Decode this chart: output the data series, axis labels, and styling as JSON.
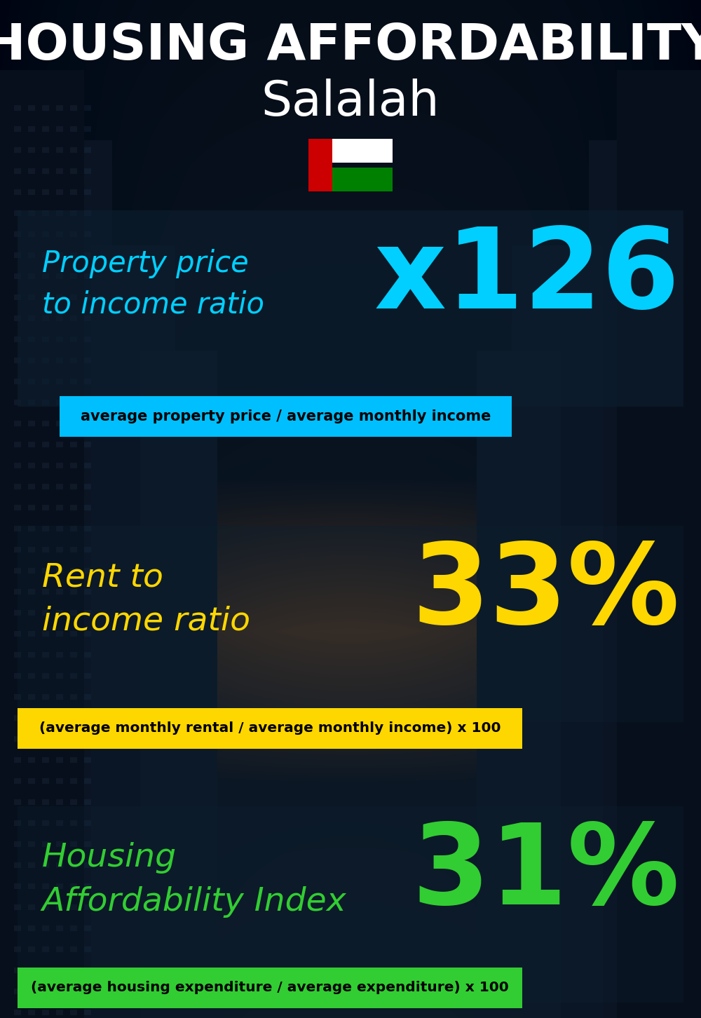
{
  "title_line1": "HOUSING AFFORDABILITY",
  "title_line2": "Salalah",
  "section1_label": "Property price\nto income ratio",
  "section1_value": "x126",
  "section1_label_color": "#00CFFF",
  "section1_value_color": "#00CFFF",
  "section1_banner": "average property price / average monthly income",
  "section1_banner_bg": "#00BFFF",
  "section2_label": "Rent to\nincome ratio",
  "section2_value": "33%",
  "section2_label_color": "#FFD700",
  "section2_value_color": "#FFD700",
  "section2_banner": "(average monthly rental / average monthly income) x 100",
  "section2_banner_bg": "#FFD700",
  "section3_label": "Housing\nAffordability Index",
  "section3_value": "31%",
  "section3_label_color": "#32CD32",
  "section3_value_color": "#32CD32",
  "section3_banner": "(average housing expenditure / average expenditure) x 100",
  "section3_banner_bg": "#32CD32",
  "bg_color": "#07111e",
  "title_color": "#FFFFFF",
  "banner_text_color": "#000000",
  "flag_red": "#CC0001",
  "flag_white": "#FFFFFF",
  "flag_green": "#008000",
  "overlay_color": "#0d1f30",
  "overlay_alpha": 0.6
}
